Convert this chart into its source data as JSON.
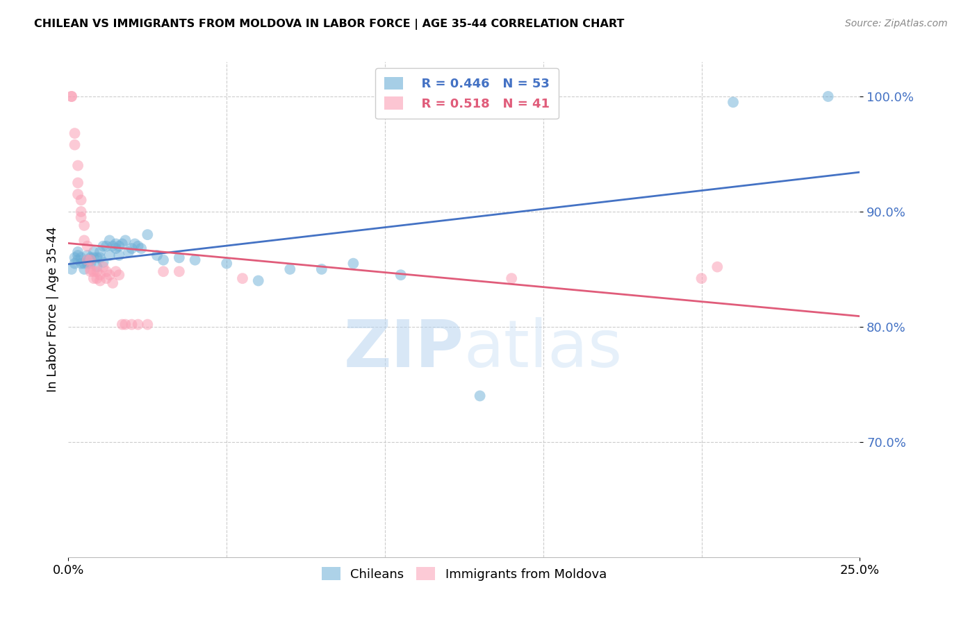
{
  "title": "CHILEAN VS IMMIGRANTS FROM MOLDOVA IN LABOR FORCE | AGE 35-44 CORRELATION CHART",
  "source": "Source: ZipAtlas.com",
  "ylabel": "In Labor Force | Age 35-44",
  "xlim": [
    0.0,
    0.25
  ],
  "ylim": [
    0.6,
    1.03
  ],
  "yticks": [
    0.7,
    0.8,
    0.9,
    1.0
  ],
  "ytick_labels": [
    "70.0%",
    "80.0%",
    "90.0%",
    "100.0%"
  ],
  "blue_color": "#6baed6",
  "pink_color": "#fa9fb5",
  "blue_line_color": "#4472c4",
  "pink_line_color": "#e05c7a",
  "legend_blue_r": "R = 0.446",
  "legend_blue_n": "N = 53",
  "legend_pink_r": "R = 0.518",
  "legend_pink_n": "N = 41",
  "watermark_zip": "ZIP",
  "watermark_atlas": "atlas",
  "blue_scatter_x": [
    0.001,
    0.002,
    0.002,
    0.003,
    0.003,
    0.003,
    0.004,
    0.004,
    0.005,
    0.005,
    0.006,
    0.006,
    0.006,
    0.007,
    0.007,
    0.007,
    0.008,
    0.008,
    0.009,
    0.009,
    0.01,
    0.01,
    0.011,
    0.011,
    0.012,
    0.013,
    0.013,
    0.014,
    0.015,
    0.015,
    0.016,
    0.016,
    0.017,
    0.018,
    0.019,
    0.02,
    0.021,
    0.022,
    0.023,
    0.025,
    0.028,
    0.03,
    0.035,
    0.04,
    0.05,
    0.06,
    0.07,
    0.08,
    0.09,
    0.105,
    0.13,
    0.21,
    0.24
  ],
  "blue_scatter_y": [
    0.85,
    0.855,
    0.86,
    0.862,
    0.858,
    0.865,
    0.855,
    0.86,
    0.85,
    0.855,
    0.858,
    0.862,
    0.855,
    0.855,
    0.858,
    0.86,
    0.86,
    0.865,
    0.852,
    0.86,
    0.86,
    0.865,
    0.856,
    0.87,
    0.87,
    0.862,
    0.875,
    0.87,
    0.872,
    0.868,
    0.862,
    0.87,
    0.872,
    0.875,
    0.865,
    0.868,
    0.872,
    0.87,
    0.868,
    0.88,
    0.862,
    0.858,
    0.86,
    0.858,
    0.855,
    0.84,
    0.85,
    0.85,
    0.855,
    0.845,
    0.74,
    0.995,
    1.0
  ],
  "pink_scatter_x": [
    0.001,
    0.001,
    0.002,
    0.002,
    0.003,
    0.003,
    0.003,
    0.004,
    0.004,
    0.004,
    0.005,
    0.005,
    0.006,
    0.006,
    0.007,
    0.007,
    0.007,
    0.008,
    0.008,
    0.009,
    0.009,
    0.01,
    0.01,
    0.011,
    0.012,
    0.012,
    0.013,
    0.014,
    0.015,
    0.016,
    0.017,
    0.018,
    0.02,
    0.022,
    0.025,
    0.03,
    0.035,
    0.055,
    0.14,
    0.2,
    0.205
  ],
  "pink_scatter_y": [
    1.0,
    1.0,
    0.968,
    0.958,
    0.94,
    0.925,
    0.915,
    0.91,
    0.9,
    0.895,
    0.888,
    0.875,
    0.87,
    0.858,
    0.858,
    0.85,
    0.848,
    0.848,
    0.842,
    0.848,
    0.842,
    0.845,
    0.84,
    0.852,
    0.848,
    0.842,
    0.845,
    0.838,
    0.848,
    0.845,
    0.802,
    0.802,
    0.802,
    0.802,
    0.802,
    0.848,
    0.848,
    0.842,
    0.842,
    0.842,
    0.852
  ]
}
